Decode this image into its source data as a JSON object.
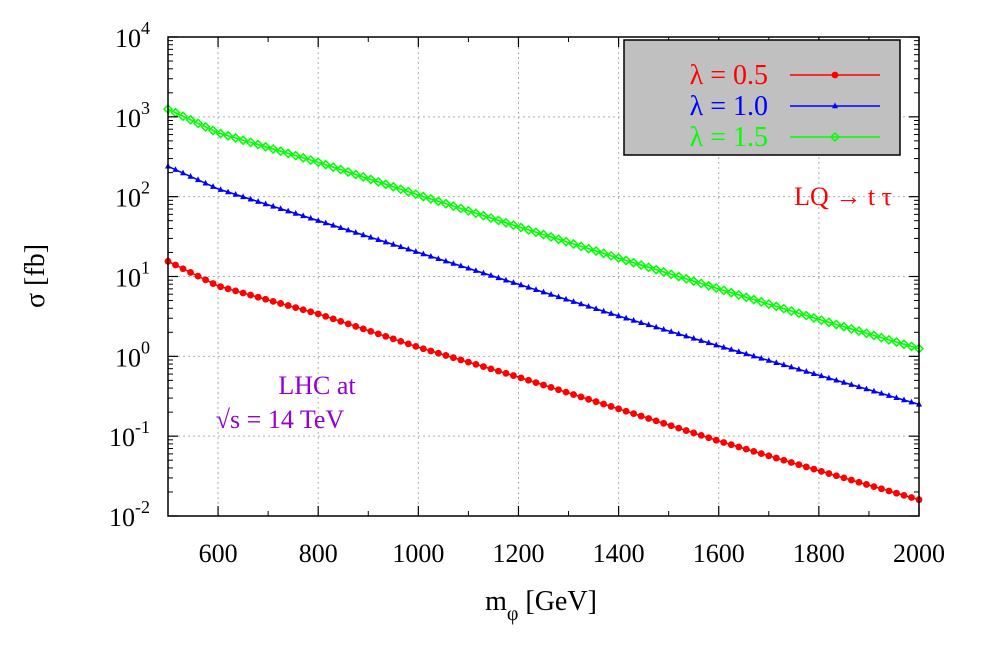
{
  "chart_data": {
    "type": "line",
    "title": "",
    "xlabel": "m",
    "xlabel_sub": "φ",
    "xlabel_unit": " [GeV]",
    "ylabel": "σ [fb]",
    "xlim": [
      500,
      2000
    ],
    "ylim": [
      0.01,
      10000
    ],
    "yscale": "log",
    "grid": true,
    "legend_position": "top-right",
    "x_ticks": [
      600,
      800,
      1000,
      1200,
      1400,
      1600,
      1800,
      2000
    ],
    "y_ticks": [
      {
        "value": 0.01,
        "base": "10",
        "exp": "-2"
      },
      {
        "value": 0.1,
        "base": "10",
        "exp": "-1"
      },
      {
        "value": 1,
        "base": "10",
        "exp": "0"
      },
      {
        "value": 10,
        "base": "10",
        "exp": "1"
      },
      {
        "value": 100,
        "base": "10",
        "exp": "2"
      },
      {
        "value": 1000,
        "base": "10",
        "exp": "3"
      },
      {
        "value": 10000,
        "base": "10",
        "exp": "4"
      }
    ],
    "series": [
      {
        "name": "λ = 0.5",
        "color": "#ff0000",
        "marker": "circle",
        "x": [
          500,
          600,
          800,
          1000,
          1200,
          1400,
          1600,
          1800,
          2000
        ],
        "y": [
          15.5,
          7.6,
          3.4,
          1.3,
          0.55,
          0.22,
          0.087,
          0.037,
          0.016
        ]
      },
      {
        "name": "λ = 1.0",
        "color": "#0000ff",
        "marker": "triangle",
        "x": [
          500,
          600,
          800,
          1000,
          1200,
          1400,
          1600,
          1800,
          2000
        ],
        "y": [
          240,
          125,
          50,
          20,
          8,
          3.2,
          1.35,
          0.58,
          0.25
        ]
      },
      {
        "name": "λ = 1.5",
        "color": "#00ff00",
        "marker": "diamond",
        "x": [
          500,
          600,
          800,
          1000,
          1200,
          1400,
          1600,
          1800,
          2000
        ],
        "y": [
          1250,
          630,
          270,
          105,
          42,
          17,
          7,
          2.9,
          1.25
        ]
      }
    ],
    "annotations": {
      "process": {
        "text": "LQ → t τ",
        "color": "#ff0000"
      },
      "collider_line1": {
        "text": "LHC at",
        "color": "#9400d3"
      },
      "collider_line2": {
        "text": "√s = 14 TeV",
        "color": "#9400d3"
      }
    },
    "legend_background": "#c0c0c0"
  }
}
